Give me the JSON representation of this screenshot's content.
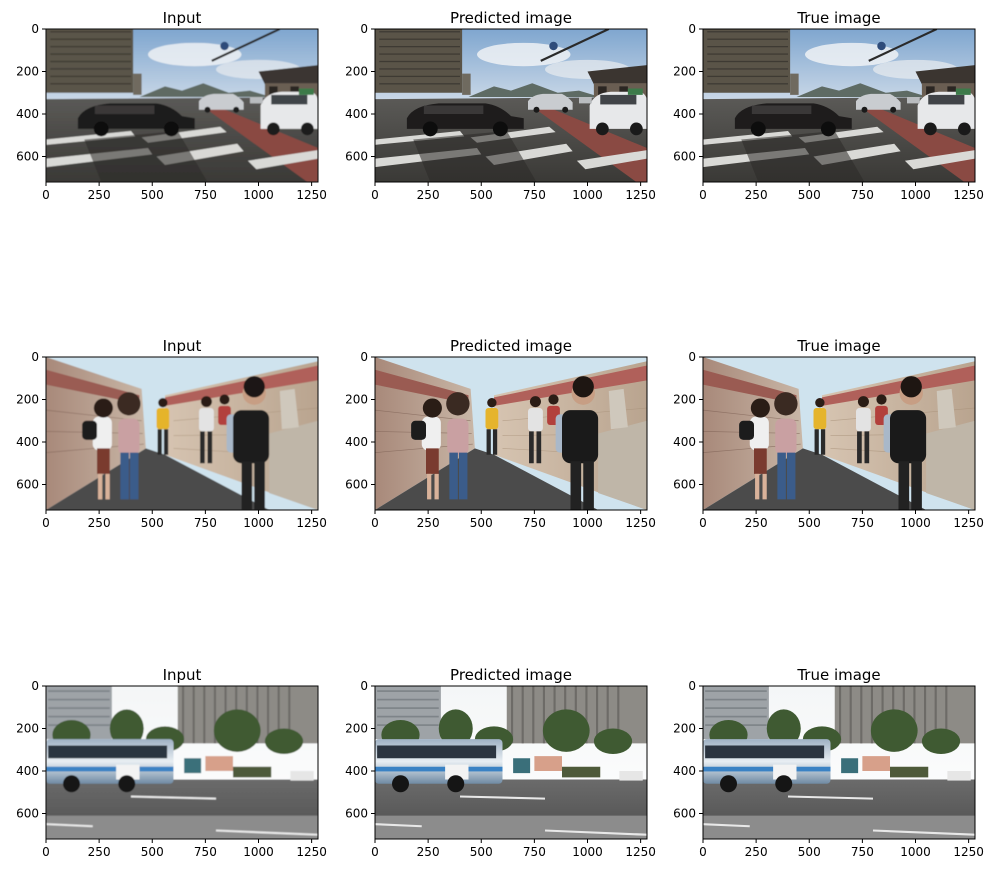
{
  "figure": {
    "background": "#ffffff",
    "grid": {
      "rows": 3,
      "cols": 3
    }
  },
  "chart_data": [
    {
      "type": "image",
      "title": "Input",
      "row": 0,
      "col": 0,
      "scene": "street",
      "blurred": true,
      "xlim": [
        0,
        1280
      ],
      "ylim": [
        720,
        0
      ],
      "xticks": [
        0,
        250,
        500,
        750,
        1000,
        1250
      ],
      "yticks": [
        0,
        200,
        400,
        600
      ],
      "xtick_labels": [
        "0",
        "250",
        "500",
        "750",
        "1000",
        "1250"
      ],
      "ytick_labels": [
        "0",
        "200",
        "400",
        "600"
      ]
    },
    {
      "type": "image",
      "title": "Predicted image",
      "row": 0,
      "col": 1,
      "scene": "street",
      "blurred": false,
      "xlim": [
        0,
        1280
      ],
      "ylim": [
        720,
        0
      ],
      "xticks": [
        0,
        250,
        500,
        750,
        1000,
        1250
      ],
      "yticks": [
        0,
        200,
        400,
        600
      ],
      "xtick_labels": [
        "0",
        "250",
        "500",
        "750",
        "1000",
        "1250"
      ],
      "ytick_labels": [
        "0",
        "200",
        "400",
        "600"
      ]
    },
    {
      "type": "image",
      "title": "True image",
      "row": 0,
      "col": 2,
      "scene": "street",
      "blurred": false,
      "xlim": [
        0,
        1280
      ],
      "ylim": [
        720,
        0
      ],
      "xticks": [
        0,
        250,
        500,
        750,
        1000,
        1250
      ],
      "yticks": [
        0,
        200,
        400,
        600
      ],
      "xtick_labels": [
        "0",
        "250",
        "500",
        "750",
        "1000",
        "1250"
      ],
      "ytick_labels": [
        "0",
        "200",
        "400",
        "600"
      ]
    },
    {
      "type": "image",
      "title": "Input",
      "row": 1,
      "col": 0,
      "scene": "alley",
      "blurred": true,
      "xlim": [
        0,
        1280
      ],
      "ylim": [
        720,
        0
      ],
      "xticks": [
        0,
        250,
        500,
        750,
        1000,
        1250
      ],
      "yticks": [
        0,
        200,
        400,
        600
      ],
      "xtick_labels": [
        "0",
        "250",
        "500",
        "750",
        "1000",
        "1250"
      ],
      "ytick_labels": [
        "0",
        "200",
        "400",
        "600"
      ]
    },
    {
      "type": "image",
      "title": "Predicted image",
      "row": 1,
      "col": 1,
      "scene": "alley",
      "blurred": false,
      "xlim": [
        0,
        1280
      ],
      "ylim": [
        720,
        0
      ],
      "xticks": [
        0,
        250,
        500,
        750,
        1000,
        1250
      ],
      "yticks": [
        0,
        200,
        400,
        600
      ],
      "xtick_labels": [
        "0",
        "250",
        "500",
        "750",
        "1000",
        "1250"
      ],
      "ytick_labels": [
        "0",
        "200",
        "400",
        "600"
      ]
    },
    {
      "type": "image",
      "title": "True image",
      "row": 1,
      "col": 2,
      "scene": "alley",
      "blurred": false,
      "xlim": [
        0,
        1280
      ],
      "ylim": [
        720,
        0
      ],
      "xticks": [
        0,
        250,
        500,
        750,
        1000,
        1250
      ],
      "yticks": [
        0,
        200,
        400,
        600
      ],
      "xtick_labels": [
        "0",
        "250",
        "500",
        "750",
        "1000",
        "1250"
      ],
      "ytick_labels": [
        "0",
        "200",
        "400",
        "600"
      ]
    },
    {
      "type": "image",
      "title": "Input",
      "row": 2,
      "col": 0,
      "scene": "bus",
      "blurred": true,
      "xlim": [
        0,
        1280
      ],
      "ylim": [
        720,
        0
      ],
      "xticks": [
        0,
        250,
        500,
        750,
        1000,
        1250
      ],
      "yticks": [
        0,
        200,
        400,
        600
      ],
      "xtick_labels": [
        "0",
        "250",
        "500",
        "750",
        "1000",
        "1250"
      ],
      "ytick_labels": [
        "0",
        "200",
        "400",
        "600"
      ]
    },
    {
      "type": "image",
      "title": "Predicted image",
      "row": 2,
      "col": 1,
      "scene": "bus",
      "blurred": false,
      "xlim": [
        0,
        1280
      ],
      "ylim": [
        720,
        0
      ],
      "xticks": [
        0,
        250,
        500,
        750,
        1000,
        1250
      ],
      "yticks": [
        0,
        200,
        400,
        600
      ],
      "xtick_labels": [
        "0",
        "250",
        "500",
        "750",
        "1000",
        "1250"
      ],
      "ytick_labels": [
        "0",
        "200",
        "400",
        "600"
      ]
    },
    {
      "type": "image",
      "title": "True image",
      "row": 2,
      "col": 2,
      "scene": "bus",
      "blurred": false,
      "xlim": [
        0,
        1280
      ],
      "ylim": [
        720,
        0
      ],
      "xticks": [
        0,
        250,
        500,
        750,
        1000,
        1250
      ],
      "yticks": [
        0,
        200,
        400,
        600
      ],
      "xtick_labels": [
        "0",
        "250",
        "500",
        "750",
        "1000",
        "1250"
      ],
      "ytick_labels": [
        "0",
        "200",
        "400",
        "600"
      ]
    }
  ]
}
